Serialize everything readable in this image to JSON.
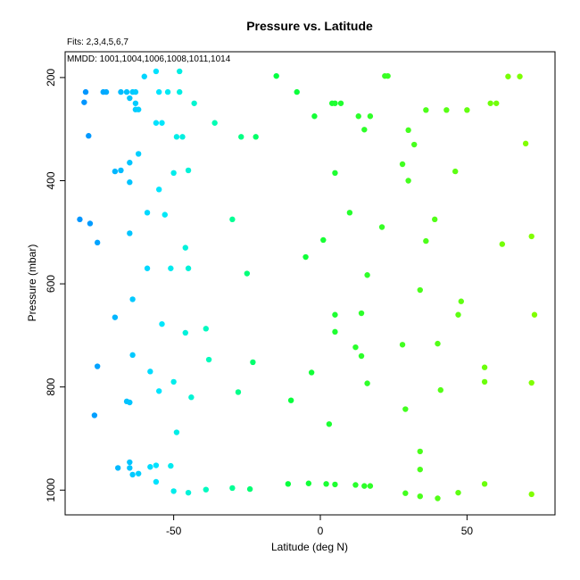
{
  "chart_data": {
    "type": "scatter",
    "title": "Pressure vs. Latitude",
    "subtitle": "Fits: 2,3,4,5,6,7",
    "annotation": "MMDD: 1001,1004,1006,1008,1011,1014",
    "xlabel": "Latitude (deg N)",
    "ylabel": "Pressure (mbar)",
    "xlim": [
      -87,
      80
    ],
    "ylim": [
      1048,
      150
    ],
    "y_reversed": true,
    "grid": false,
    "legend": "none",
    "xticks": [
      -50,
      0,
      50
    ],
    "yticks": [
      200,
      400,
      600,
      800,
      1000
    ],
    "points": [
      {
        "x": -80,
        "y": 228
      },
      {
        "x": -80.5,
        "y": 248
      },
      {
        "x": -73,
        "y": 228
      },
      {
        "x": -74,
        "y": 228
      },
      {
        "x": -68,
        "y": 228
      },
      {
        "x": -66,
        "y": 228
      },
      {
        "x": -64,
        "y": 228
      },
      {
        "x": -63,
        "y": 228
      },
      {
        "x": -63,
        "y": 250
      },
      {
        "x": -79,
        "y": 313
      },
      {
        "x": -62,
        "y": 348
      },
      {
        "x": -70,
        "y": 382
      },
      {
        "x": -68,
        "y": 380
      },
      {
        "x": -82,
        "y": 475
      },
      {
        "x": -78.5,
        "y": 483
      },
      {
        "x": -76,
        "y": 520
      },
      {
        "x": -70,
        "y": 665
      },
      {
        "x": -76,
        "y": 760
      },
      {
        "x": -77,
        "y": 855
      },
      {
        "x": -69,
        "y": 957
      },
      {
        "x": -60,
        "y": 198
      },
      {
        "x": -56,
        "y": 188
      },
      {
        "x": -48,
        "y": 188
      },
      {
        "x": -55,
        "y": 228
      },
      {
        "x": -52,
        "y": 228
      },
      {
        "x": -48,
        "y": 228
      },
      {
        "x": -65,
        "y": 240
      },
      {
        "x": -63,
        "y": 262
      },
      {
        "x": -62,
        "y": 262
      },
      {
        "x": -43,
        "y": 250
      },
      {
        "x": -36,
        "y": 288
      },
      {
        "x": -56,
        "y": 288
      },
      {
        "x": -54,
        "y": 288
      },
      {
        "x": -49,
        "y": 315
      },
      {
        "x": -47,
        "y": 315
      },
      {
        "x": -27,
        "y": 315
      },
      {
        "x": -22,
        "y": 315
      },
      {
        "x": -65,
        "y": 365
      },
      {
        "x": -50,
        "y": 385
      },
      {
        "x": -45,
        "y": 380
      },
      {
        "x": -65,
        "y": 403
      },
      {
        "x": -55,
        "y": 417
      },
      {
        "x": -59,
        "y": 462
      },
      {
        "x": -53,
        "y": 466
      },
      {
        "x": -30,
        "y": 475
      },
      {
        "x": -65,
        "y": 502
      },
      {
        "x": -46,
        "y": 530
      },
      {
        "x": -59,
        "y": 570
      },
      {
        "x": -51,
        "y": 570
      },
      {
        "x": -45,
        "y": 570
      },
      {
        "x": -25,
        "y": 580
      },
      {
        "x": -64,
        "y": 630
      },
      {
        "x": -54,
        "y": 678
      },
      {
        "x": -39,
        "y": 687
      },
      {
        "x": -46,
        "y": 695
      },
      {
        "x": -64,
        "y": 738
      },
      {
        "x": -38,
        "y": 747
      },
      {
        "x": -23,
        "y": 752
      },
      {
        "x": -58,
        "y": 770
      },
      {
        "x": -50,
        "y": 790
      },
      {
        "x": -55,
        "y": 808
      },
      {
        "x": -28,
        "y": 810
      },
      {
        "x": -44,
        "y": 820
      },
      {
        "x": -66,
        "y": 828
      },
      {
        "x": -65,
        "y": 830
      },
      {
        "x": -49,
        "y": 888
      },
      {
        "x": -65,
        "y": 946
      },
      {
        "x": -58,
        "y": 955
      },
      {
        "x": -56,
        "y": 952
      },
      {
        "x": -51,
        "y": 953
      },
      {
        "x": -65,
        "y": 957
      },
      {
        "x": -62,
        "y": 968
      },
      {
        "x": -64,
        "y": 970
      },
      {
        "x": -56,
        "y": 984
      },
      {
        "x": -50,
        "y": 1002
      },
      {
        "x": -45,
        "y": 1005
      },
      {
        "x": -39,
        "y": 999
      },
      {
        "x": -30,
        "y": 996
      },
      {
        "x": -24,
        "y": 998
      },
      {
        "x": -15,
        "y": 197
      },
      {
        "x": -8,
        "y": 228
      },
      {
        "x": 4,
        "y": 250
      },
      {
        "x": 5,
        "y": 250
      },
      {
        "x": 7,
        "y": 250
      },
      {
        "x": -2,
        "y": 275
      },
      {
        "x": 13,
        "y": 275
      },
      {
        "x": 17,
        "y": 275
      },
      {
        "x": 15,
        "y": 301
      },
      {
        "x": 22,
        "y": 197
      },
      {
        "x": 23,
        "y": 197
      },
      {
        "x": 30,
        "y": 302
      },
      {
        "x": 32,
        "y": 330
      },
      {
        "x": 36,
        "y": 263
      },
      {
        "x": 43,
        "y": 263
      },
      {
        "x": 50,
        "y": 263
      },
      {
        "x": 58,
        "y": 250
      },
      {
        "x": 60,
        "y": 250
      },
      {
        "x": 64,
        "y": 198
      },
      {
        "x": 68,
        "y": 198
      },
      {
        "x": 70,
        "y": 328
      },
      {
        "x": 28,
        "y": 368
      },
      {
        "x": 5,
        "y": 385
      },
      {
        "x": 30,
        "y": 400
      },
      {
        "x": 46,
        "y": 382
      },
      {
        "x": 10,
        "y": 462
      },
      {
        "x": 21,
        "y": 490
      },
      {
        "x": 39,
        "y": 475
      },
      {
        "x": 1,
        "y": 515
      },
      {
        "x": 36,
        "y": 517
      },
      {
        "x": 62,
        "y": 523
      },
      {
        "x": 72,
        "y": 508
      },
      {
        "x": -5,
        "y": 548
      },
      {
        "x": 16,
        "y": 583
      },
      {
        "x": 34,
        "y": 612
      },
      {
        "x": 48,
        "y": 634
      },
      {
        "x": 5,
        "y": 660
      },
      {
        "x": 14,
        "y": 657
      },
      {
        "x": 47,
        "y": 660
      },
      {
        "x": 73,
        "y": 660
      },
      {
        "x": 5,
        "y": 693
      },
      {
        "x": 28,
        "y": 718
      },
      {
        "x": 40,
        "y": 716
      },
      {
        "x": 12,
        "y": 723
      },
      {
        "x": 14,
        "y": 740
      },
      {
        "x": -3,
        "y": 772
      },
      {
        "x": 56,
        "y": 762
      },
      {
        "x": 56,
        "y": 790
      },
      {
        "x": 16,
        "y": 793
      },
      {
        "x": 72,
        "y": 792
      },
      {
        "x": 41,
        "y": 806
      },
      {
        "x": -10,
        "y": 826
      },
      {
        "x": 29,
        "y": 843
      },
      {
        "x": 3,
        "y": 872
      },
      {
        "x": 34,
        "y": 925
      },
      {
        "x": 34,
        "y": 960
      },
      {
        "x": -11,
        "y": 988
      },
      {
        "x": -4,
        "y": 987
      },
      {
        "x": 2,
        "y": 988
      },
      {
        "x": 5,
        "y": 989
      },
      {
        "x": 12,
        "y": 990
      },
      {
        "x": 15,
        "y": 992
      },
      {
        "x": 17,
        "y": 992
      },
      {
        "x": 56,
        "y": 988
      },
      {
        "x": 29,
        "y": 1006
      },
      {
        "x": 34,
        "y": 1012
      },
      {
        "x": 40,
        "y": 1016
      },
      {
        "x": 47,
        "y": 1005
      },
      {
        "x": 72,
        "y": 1008
      }
    ],
    "colormap": {
      "stops": [
        {
          "lat": -80,
          "color": "#0096ff"
        },
        {
          "lat": -55,
          "color": "#00e5ff"
        },
        {
          "lat": -35,
          "color": "#00ffb0"
        },
        {
          "lat": -15,
          "color": "#00ff40"
        },
        {
          "lat": 70,
          "color": "#80ff00"
        }
      ]
    }
  }
}
